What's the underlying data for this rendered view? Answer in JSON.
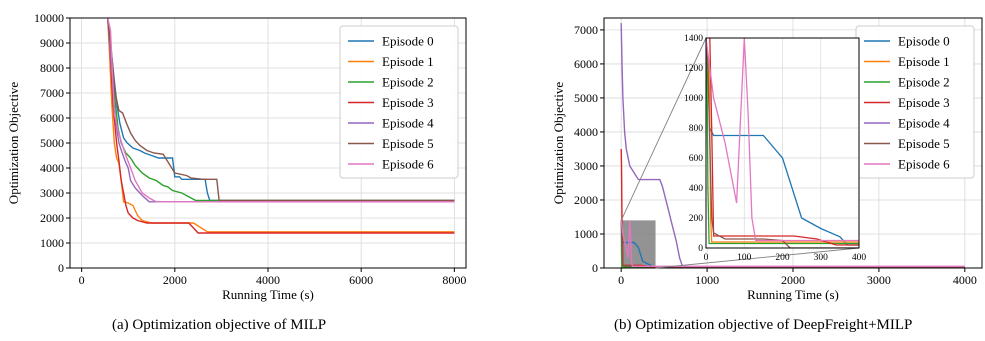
{
  "colors": {
    "series": [
      "#1f77b4",
      "#ff7f0e",
      "#2ca02c",
      "#d62728",
      "#9467bd",
      "#8c564b",
      "#e377c2"
    ],
    "grid": "#d9d9d9",
    "highlight_box": "#808080"
  },
  "captions": {
    "a": "(a) Optimization objective of MILP",
    "b": "(b) Optimization objective of DeepFreight+MILP"
  },
  "chart_data": [
    {
      "type": "line",
      "xlabel": "Running Time (s)",
      "ylabel": "Optimization Objective",
      "xlim": [
        -250,
        8250
      ],
      "ylim": [
        0,
        10000
      ],
      "xticks": [
        0,
        2000,
        4000,
        6000,
        8000
      ],
      "yticks": [
        0,
        1000,
        2000,
        3000,
        4000,
        5000,
        6000,
        7000,
        8000,
        9000,
        10000
      ],
      "grid": true,
      "legend_position": "top-right",
      "series": [
        {
          "name": "Episode 0",
          "x": [
            560,
            620,
            700,
            760,
            820,
            900,
            980,
            1100,
            1250,
            1350,
            1500,
            1650,
            1800,
            1950,
            2000,
            2100,
            2150,
            2300,
            2650,
            2700,
            2750,
            8000
          ],
          "y": [
            10000,
            9000,
            7500,
            6500,
            5800,
            5200,
            5000,
            4800,
            4700,
            4600,
            4500,
            4400,
            4400,
            4400,
            3650,
            3650,
            3550,
            3550,
            3550,
            3000,
            2700,
            2700
          ]
        },
        {
          "name": "Episode 1",
          "x": [
            560,
            600,
            650,
            700,
            750,
            800,
            850,
            900,
            1000,
            1100,
            1200,
            1300,
            1500,
            2000,
            2400,
            2700,
            2750,
            8000
          ],
          "y": [
            10000,
            8500,
            6500,
            5000,
            4400,
            4200,
            3500,
            2650,
            2600,
            2500,
            2100,
            1900,
            1800,
            1800,
            1800,
            1450,
            1450,
            1450
          ]
        },
        {
          "name": "Episode 2",
          "x": [
            560,
            620,
            700,
            780,
            850,
            950,
            1050,
            1150,
            1300,
            1450,
            1600,
            1750,
            1850,
            1950,
            2150,
            2450,
            2700,
            8000
          ],
          "y": [
            10000,
            8800,
            7000,
            5600,
            5000,
            4600,
            4400,
            4100,
            3800,
            3600,
            3500,
            3300,
            3250,
            3100,
            3000,
            2700,
            2700,
            2700
          ]
        },
        {
          "name": "Episode 3",
          "x": [
            560,
            600,
            680,
            750,
            800,
            850,
            900,
            950,
            1000,
            1100,
            1200,
            1400,
            1800,
            2300,
            2400,
            2500,
            8000
          ],
          "y": [
            10000,
            9000,
            6400,
            5000,
            4300,
            3500,
            3000,
            2500,
            2200,
            2000,
            1900,
            1800,
            1800,
            1800,
            1600,
            1400,
            1400
          ]
        },
        {
          "name": "Episode 4",
          "x": [
            560,
            640,
            720,
            800,
            870,
            950,
            1000,
            1050,
            1150,
            1300,
            1450,
            8000
          ],
          "y": [
            10000,
            8000,
            6000,
            5000,
            4600,
            4200,
            4000,
            3500,
            3200,
            2900,
            2650,
            2650
          ]
        },
        {
          "name": "Episode 5",
          "x": [
            560,
            640,
            720,
            800,
            880,
            960,
            1050,
            1150,
            1250,
            1400,
            1550,
            1750,
            1900,
            2000,
            2250,
            2350,
            2600,
            2900,
            2950,
            8000
          ],
          "y": [
            10000,
            8600,
            7000,
            6300,
            6200,
            5800,
            5400,
            5100,
            4900,
            4700,
            4600,
            4550,
            4100,
            3800,
            3700,
            3600,
            3550,
            3550,
            2700,
            2700
          ]
        },
        {
          "name": "Episode 6",
          "x": [
            560,
            620,
            700,
            780,
            860,
            950,
            1050,
            1150,
            1300,
            1450,
            1600,
            8000
          ],
          "y": [
            10000,
            9500,
            6200,
            5500,
            5000,
            4500,
            4000,
            3500,
            3000,
            2800,
            2650,
            2650
          ]
        }
      ]
    },
    {
      "type": "line",
      "xlabel": "Running Time (s)",
      "ylabel": "Optimization Objective",
      "xlim": [
        -200,
        4200
      ],
      "ylim": [
        0,
        7350
      ],
      "xticks": [
        0,
        1000,
        2000,
        3000,
        4000
      ],
      "yticks": [
        0,
        1000,
        2000,
        3000,
        4000,
        5000,
        6000,
        7000
      ],
      "grid": true,
      "legend_position": "top-right",
      "highlight_region": {
        "x": [
          0,
          400
        ],
        "y": [
          0,
          1400
        ]
      },
      "series": [
        {
          "name": "Episode 0",
          "x": [
            0,
            5,
            10,
            20,
            50,
            100,
            150,
            200,
            250,
            300,
            350,
            370,
            380,
            4000
          ],
          "y": [
            1400,
            1200,
            800,
            750,
            750,
            750,
            750,
            600,
            200,
            130,
            75,
            20,
            20,
            20
          ]
        },
        {
          "name": "Episode 1",
          "x": [
            0,
            8,
            10,
            12,
            15,
            100,
            4000
          ],
          "y": [
            1400,
            1200,
            800,
            200,
            40,
            40,
            40
          ]
        },
        {
          "name": "Episode 2",
          "x": [
            0,
            3,
            5,
            8,
            50,
            4000
          ],
          "y": [
            1400,
            1100,
            400,
            30,
            30,
            30
          ]
        },
        {
          "name": "Episode 3",
          "x": [
            0,
            5,
            10,
            15,
            20,
            60,
            130,
            230,
            290,
            340,
            4000
          ],
          "y": [
            3500,
            2800,
            1400,
            800,
            80,
            80,
            80,
            80,
            60,
            20,
            20
          ]
        },
        {
          "name": "Episode 4",
          "x": [
            0,
            10,
            20,
            40,
            60,
            100,
            200,
            250,
            450,
            480,
            520,
            560,
            600,
            640,
            680,
            720,
            4000
          ],
          "y": [
            7200,
            6000,
            5000,
            4000,
            3500,
            3000,
            2600,
            2600,
            2600,
            2400,
            2000,
            1600,
            1200,
            800,
            300,
            0,
            0
          ]
        },
        {
          "name": "Episode 5",
          "x": [
            0,
            5,
            10,
            15,
            20,
            50,
            100,
            150,
            200,
            220,
            4000
          ],
          "y": [
            1400,
            1200,
            700,
            200,
            100,
            60,
            60,
            60,
            50,
            0,
            0
          ]
        },
        {
          "name": "Episode 6",
          "x": [
            0,
            20,
            50,
            80,
            100,
            110,
            120,
            130,
            4000
          ],
          "y": [
            1400,
            1000,
            700,
            300,
            1400,
            900,
            200,
            50,
            50
          ]
        }
      ]
    }
  ]
}
